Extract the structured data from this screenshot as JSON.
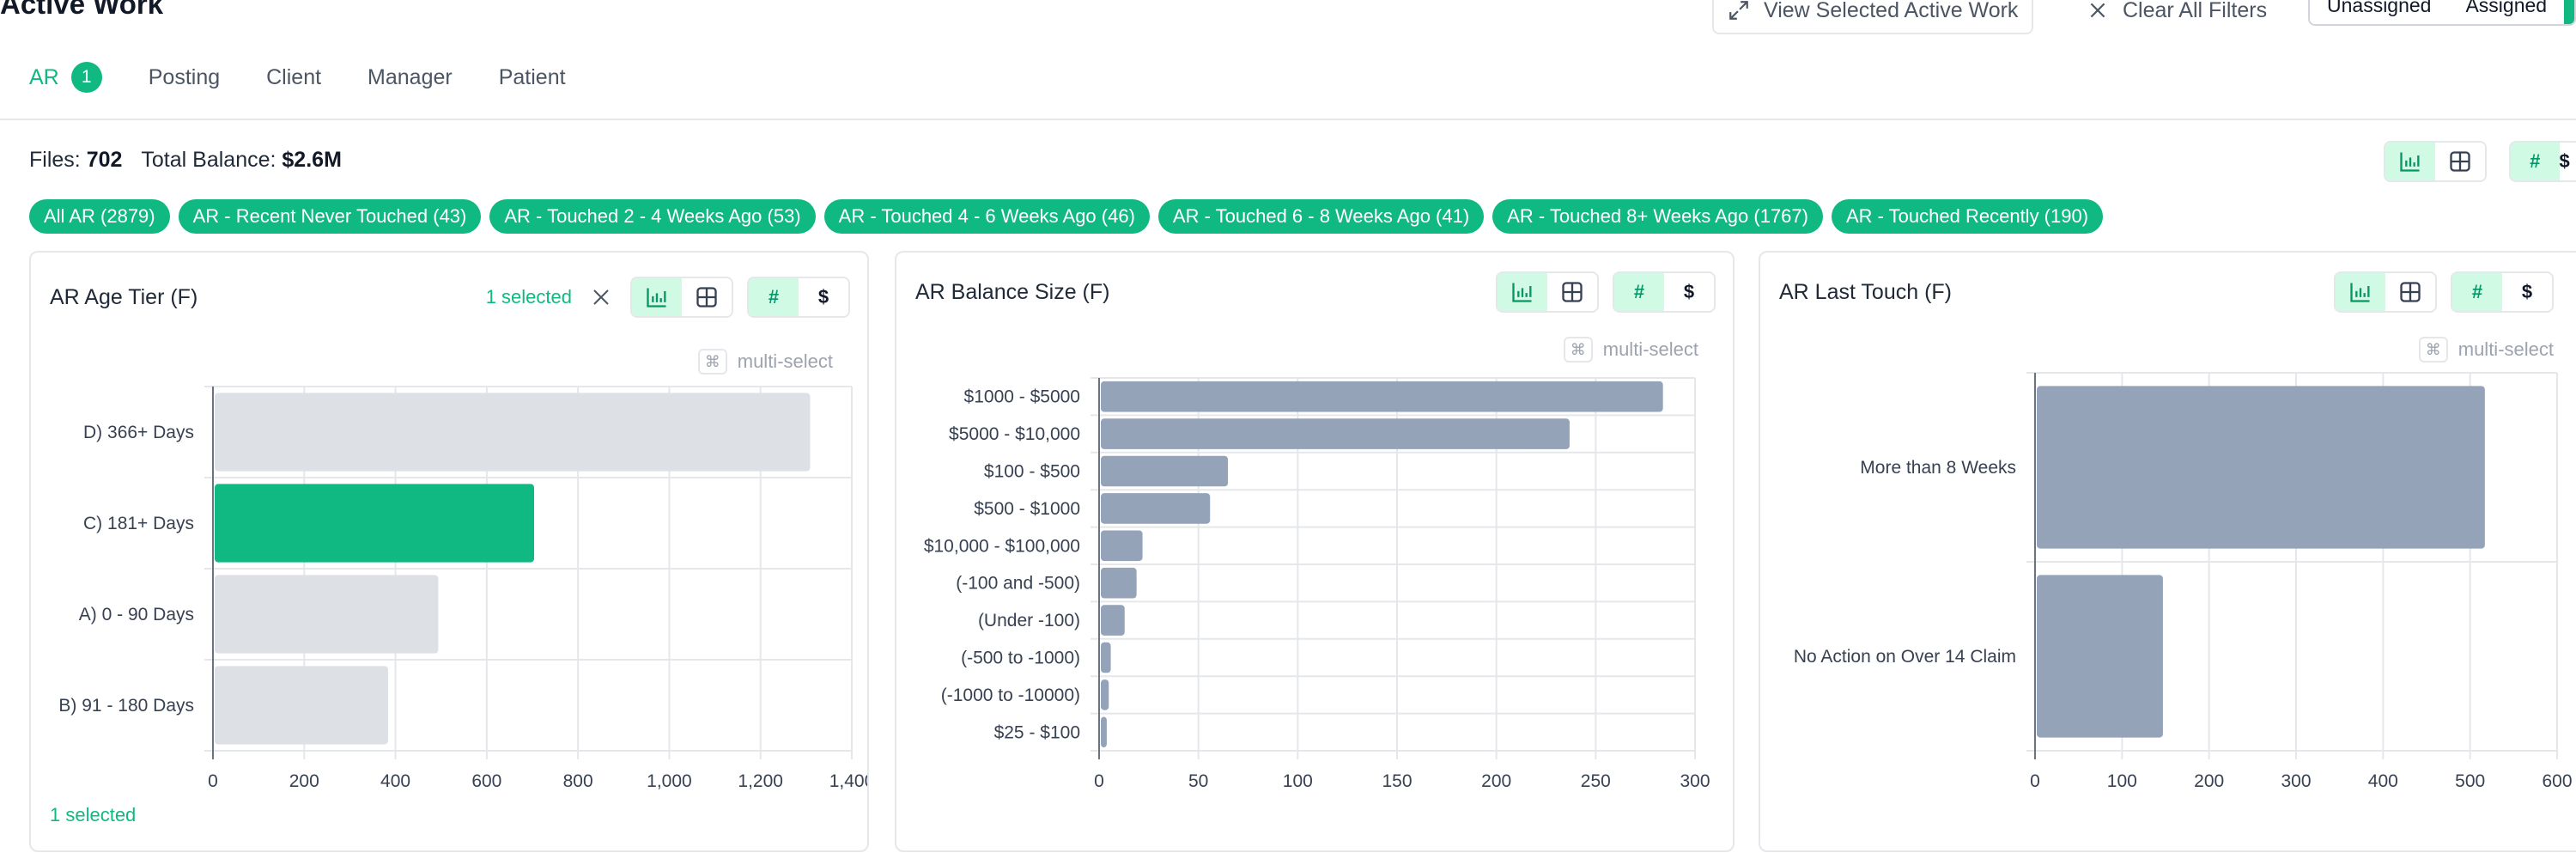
{
  "header": {
    "title": "Active Work",
    "view_selected_label": "View Selected Active Work",
    "clear_filters_label": "Clear All Filters",
    "segment": [
      "Unassigned",
      "Assigned"
    ]
  },
  "tabs": [
    {
      "label": "AR",
      "badge": "1",
      "active": true
    },
    {
      "label": "Posting"
    },
    {
      "label": "Client"
    },
    {
      "label": "Manager"
    },
    {
      "label": "Patient"
    }
  ],
  "summary": {
    "files_label": "Files:",
    "files_value": "702",
    "balance_label": "Total Balance:",
    "balance_value": "$2.6M"
  },
  "view_toggle": {
    "count_label": "#",
    "dollar_label": "$"
  },
  "chips": [
    "All AR (2879)",
    "AR - Recent Never Touched (43)",
    "AR - Touched 2 - 4 Weeks Ago (53)",
    "AR - Touched 4 - 6 Weeks Ago (46)",
    "AR - Touched 6 - 8 Weeks Ago (41)",
    "AR - Touched 8+ Weeks Ago (1767)",
    "AR - Touched Recently (190)"
  ],
  "cards": {
    "age": {
      "title": "AR Age Tier (F)",
      "selected_text": "1 selected",
      "multi_select": "multi-select",
      "footer": "1 selected"
    },
    "balance": {
      "title": "AR Balance Size (F)",
      "multi_select": "multi-select"
    },
    "touch": {
      "title": "AR Last Touch (F)",
      "multi_select": "multi-select"
    }
  },
  "chart_data": [
    {
      "type": "bar",
      "orientation": "horizontal",
      "title": "AR Age Tier (F)",
      "categories": [
        "D) 366+ Days",
        "C) 181+ Days",
        "A) 0 - 90 Days",
        "B) 91 - 180 Days"
      ],
      "values": [
        1305,
        700,
        490,
        380
      ],
      "selected": [
        "C) 181+ Days"
      ],
      "xlim": [
        0,
        1400
      ],
      "xticks": [
        "0",
        "200",
        "400",
        "600",
        "800",
        "1,000",
        "1,200",
        "1,400"
      ],
      "xtick_values": [
        0,
        200,
        400,
        600,
        800,
        1000,
        1200,
        1400
      ],
      "grid": true
    },
    {
      "type": "bar",
      "orientation": "horizontal",
      "title": "AR Balance Size (F)",
      "categories": [
        "$1000 - $5000",
        "$5000 - $10,000",
        "$100 - $500",
        "$500 - $1000",
        "$10,000 - $100,000",
        "(-100 and -500)",
        "(Under -100)",
        "(-500 to -1000)",
        "(-1000 to -10000)",
        "$25 - $100"
      ],
      "values": [
        283,
        236,
        64,
        55,
        21,
        18,
        12,
        5,
        4,
        3
      ],
      "xlim": [
        0,
        300
      ],
      "xticks": [
        "0",
        "50",
        "100",
        "150",
        "200",
        "250",
        "300"
      ],
      "xtick_values": [
        0,
        50,
        100,
        150,
        200,
        250,
        300
      ],
      "grid": true
    },
    {
      "type": "bar",
      "orientation": "horizontal",
      "title": "AR Last Touch (F)",
      "categories": [
        "More than 8 Weeks",
        "No Action on Over 14 Claim"
      ],
      "values": [
        515,
        145
      ],
      "xlim": [
        0,
        600
      ],
      "xticks": [
        "0",
        "100",
        "200",
        "300",
        "400",
        "500",
        "600"
      ],
      "xtick_values": [
        0,
        100,
        200,
        300,
        400,
        500,
        600
      ],
      "grid": true
    }
  ],
  "colors": {
    "accent": "#10b981",
    "bar_default": "#94a3b8",
    "bar_unselected": "#dde1e5",
    "grid": "#e5e7eb"
  }
}
